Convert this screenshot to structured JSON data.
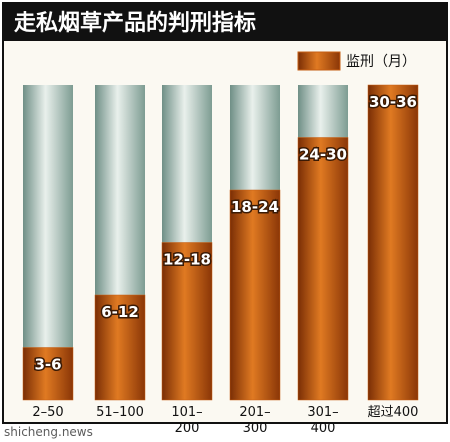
{
  "chart_data": {
    "type": "bar",
    "title": "走私烟草产品的判刑指标",
    "legend": "监刑（月）",
    "categories": [
      "2–50",
      "51–100",
      "101–\n200",
      "201–\n300",
      "301–\n400",
      "超过400"
    ],
    "values": [
      6,
      12,
      18,
      24,
      30,
      36
    ],
    "value_labels": [
      "3-6",
      "6-12",
      "12-18",
      "18-24",
      "24-30",
      "30-36"
    ],
    "color": "#c65e14",
    "ylim": [
      0,
      36
    ],
    "watermark": "shicheng.news"
  }
}
